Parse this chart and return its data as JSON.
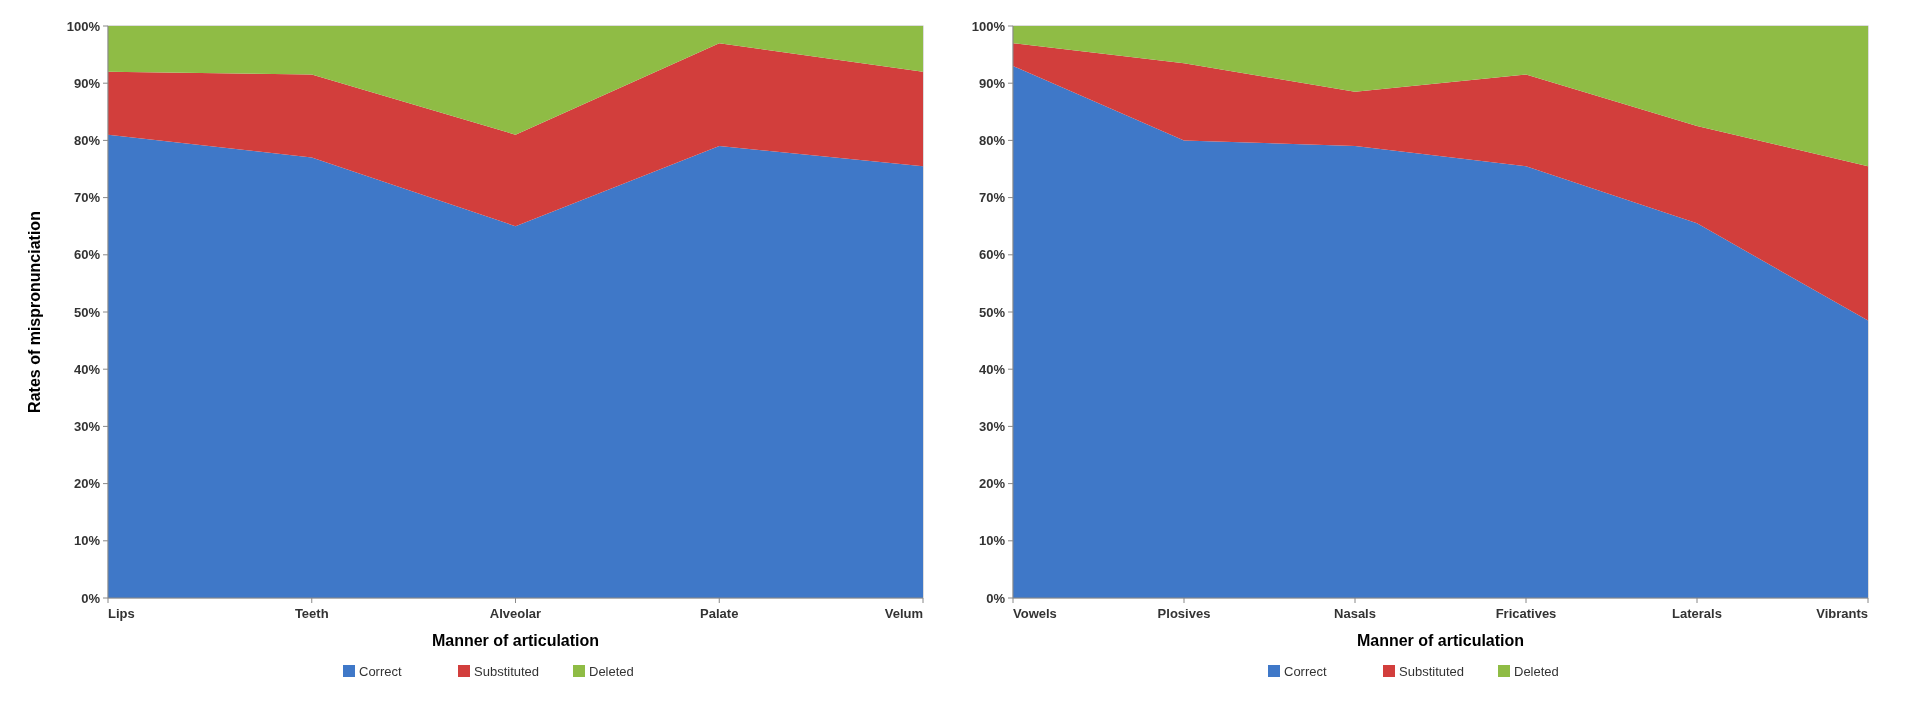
{
  "chart_data": [
    {
      "type": "area",
      "stacked": true,
      "xlabel": "Manner of articulation",
      "ylabel": "Rates of mispronunciation",
      "categories": [
        "Lips",
        "Teeth",
        "Alveolar",
        "Palate",
        "Velum"
      ],
      "ylim": [
        0,
        100
      ],
      "yticks": [
        {
          "value": 0,
          "label": "0%"
        },
        {
          "value": 10,
          "label": "10%"
        },
        {
          "value": 20,
          "label": "20%"
        },
        {
          "value": 30,
          "label": "30%"
        },
        {
          "value": 40,
          "label": "40%"
        },
        {
          "value": 50,
          "label": "50%"
        },
        {
          "value": 60,
          "label": "60%"
        },
        {
          "value": 70,
          "label": "70%"
        },
        {
          "value": 80,
          "label": "80%"
        },
        {
          "value": 90,
          "label": "90%"
        },
        {
          "value": 100,
          "label": "100%"
        }
      ],
      "legend": "bottom",
      "series": [
        {
          "name": "Correct",
          "color": "#3f78c8",
          "values": [
            81,
            77,
            65,
            79,
            75.5
          ]
        },
        {
          "name": "Substituted",
          "color": "#d23e3c",
          "values": [
            11,
            14.5,
            16,
            18,
            16.5
          ]
        },
        {
          "name": "Deleted",
          "color": "#8fbc45",
          "values": [
            8,
            8.5,
            19,
            3,
            8
          ]
        }
      ]
    },
    {
      "type": "area",
      "stacked": true,
      "xlabel": "Manner of articulation",
      "categories": [
        "Vowels",
        "Plosives",
        "Nasals",
        "Fricatives",
        "Laterals",
        "Vibrants"
      ],
      "ylim": [
        0,
        100
      ],
      "yticks": [
        {
          "value": 0,
          "label": "0%"
        },
        {
          "value": 10,
          "label": "10%"
        },
        {
          "value": 20,
          "label": "20%"
        },
        {
          "value": 30,
          "label": "30%"
        },
        {
          "value": 40,
          "label": "40%"
        },
        {
          "value": 50,
          "label": "50%"
        },
        {
          "value": 60,
          "label": "60%"
        },
        {
          "value": 70,
          "label": "70%"
        },
        {
          "value": 80,
          "label": "80%"
        },
        {
          "value": 90,
          "label": "90%"
        },
        {
          "value": 100,
          "label": "100%"
        }
      ],
      "legend": "bottom",
      "series": [
        {
          "name": "Correct",
          "color": "#3f78c8",
          "values": [
            93,
            80,
            79,
            75.5,
            65.5,
            48.5
          ]
        },
        {
          "name": "Substituted",
          "color": "#d23e3c",
          "values": [
            4,
            13.5,
            9.5,
            16,
            17,
            27
          ]
        },
        {
          "name": "Deleted",
          "color": "#8fbc45",
          "values": [
            3,
            6.5,
            11.5,
            8.5,
            17.5,
            24.5
          ]
        }
      ]
    }
  ]
}
